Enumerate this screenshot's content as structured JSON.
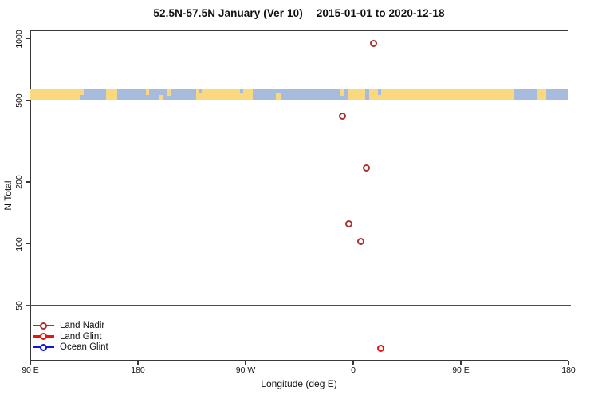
{
  "header": {
    "title": "52.5N-57.5N January (Ver 10)",
    "date_range": "2015-01-01 to 2020-12-18"
  },
  "chart_data": {
    "type": "scatter",
    "title": "52.5N-57.5N January (Ver 10)",
    "subtitle": "2015-01-01 to 2020-12-18",
    "xlabel": "Longitude (deg E)",
    "ylabel": "N Total",
    "y_scale": "log",
    "grid": false,
    "x_axis": {
      "range_plot_deg": [
        90,
        540
      ],
      "ticks": [
        {
          "lon": 90,
          "label": "90 E"
        },
        {
          "lon": 180,
          "label": "180"
        },
        {
          "lon": 270,
          "label": "90 W"
        },
        {
          "lon": 360,
          "label": "0"
        },
        {
          "lon": 450,
          "label": "90 E"
        },
        {
          "lon": 540,
          "label": "180"
        }
      ]
    },
    "y_axis": {
      "range": [
        25,
        1100
      ],
      "ticks": [
        {
          "value": 1000,
          "label": "1000"
        },
        {
          "value": 500,
          "label": "500"
        },
        {
          "value": 200,
          "label": "200"
        },
        {
          "value": 100,
          "label": "100"
        },
        {
          "value": 50,
          "label": "50"
        }
      ]
    },
    "reference_line": {
      "y": 50,
      "color": "#4d4d4d"
    },
    "map_band": {
      "y_value": 500,
      "ocean_color": "#a7bcdc",
      "land_color": "#fad880",
      "segments": [
        {
          "a": 90,
          "b": 134.5,
          "t": "land"
        },
        {
          "a": 131.5,
          "b": 134.5,
          "t": "ocean",
          "h": 0.45,
          "va": "b"
        },
        {
          "a": 153.5,
          "b": 162.5,
          "t": "land"
        },
        {
          "a": 186.5,
          "b": 189.5,
          "t": "land",
          "h": 0.55,
          "va": "t"
        },
        {
          "a": 197,
          "b": 201,
          "t": "land",
          "h": 0.5,
          "va": "b"
        },
        {
          "a": 204.5,
          "b": 207.5,
          "t": "land",
          "h": 0.6,
          "va": "t"
        },
        {
          "a": 228.5,
          "b": 276,
          "t": "land"
        },
        {
          "a": 231,
          "b": 233.5,
          "t": "ocean",
          "h": 0.4,
          "va": "t"
        },
        {
          "a": 265.5,
          "b": 268,
          "t": "ocean",
          "h": 0.4,
          "va": "t"
        },
        {
          "a": 295.5,
          "b": 299.5,
          "t": "land",
          "h": 0.65,
          "va": "b"
        },
        {
          "a": 349.5,
          "b": 352.5,
          "t": "land",
          "h": 0.6,
          "va": "t"
        },
        {
          "a": 356,
          "b": 370,
          "t": "land"
        },
        {
          "a": 373.5,
          "b": 494.5,
          "t": "land"
        },
        {
          "a": 380.5,
          "b": 383.5,
          "t": "ocean",
          "h": 0.5,
          "va": "t"
        },
        {
          "a": 513,
          "b": 521.5,
          "t": "land"
        }
      ]
    },
    "series": [
      {
        "name": "Land Nadir",
        "color": "#a83232",
        "points": [
          {
            "lon": 16.9,
            "n": 950
          },
          {
            "lon": -8.7,
            "n": 420
          },
          {
            "lon": 10.9,
            "n": 235
          },
          {
            "lon": -3.5,
            "n": 125
          },
          {
            "lon": 6.5,
            "n": 103
          }
        ]
      },
      {
        "name": "Land Glint",
        "color": "#ee1111",
        "points": [
          {
            "lon": 22.9,
            "n": 31
          }
        ]
      },
      {
        "name": "Ocean Glint",
        "color": "#1111ee",
        "points": []
      }
    ],
    "legend": {
      "position": "bottom-left",
      "entries": [
        "Land Nadir",
        "Land Glint",
        "Ocean Glint"
      ]
    }
  }
}
